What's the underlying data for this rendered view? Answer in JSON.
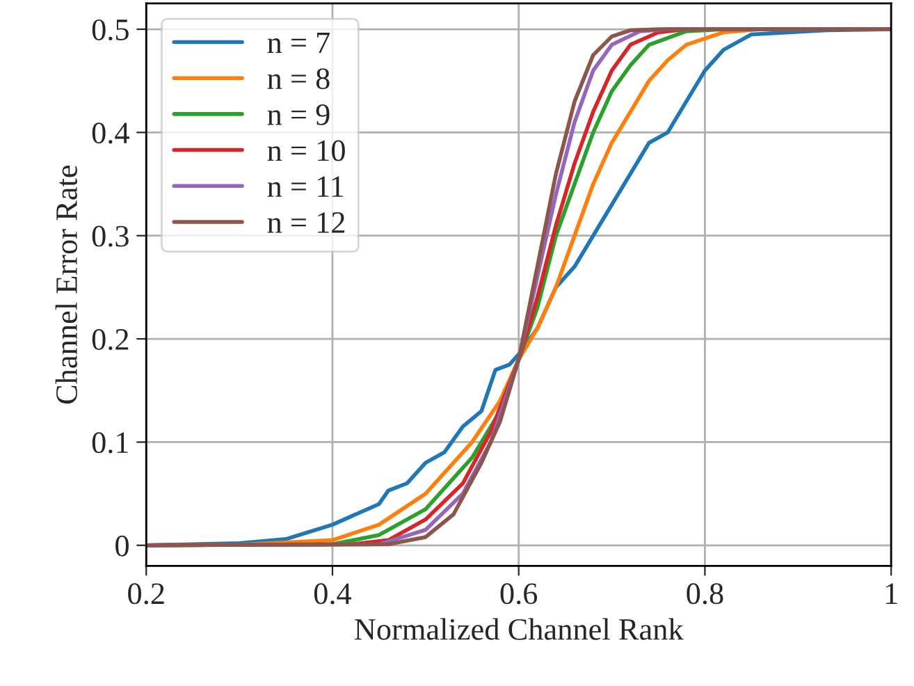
{
  "chart_data": {
    "type": "line",
    "xlabel": "Normalized Channel Rank",
    "ylabel": "Channel Error Rate",
    "xlim": [
      0.2,
      1.0
    ],
    "ylim": [
      -0.02,
      0.525
    ],
    "xticks": [
      0.2,
      0.4,
      0.6,
      0.8,
      1
    ],
    "yticks": [
      0,
      0.1,
      0.2,
      0.3,
      0.4,
      0.5
    ],
    "grid": true,
    "legend": "top left",
    "line_style": "solid",
    "marker": "none",
    "series": [
      {
        "name": "n = 7",
        "color": "#1f77b4",
        "x": [
          0.2,
          0.3,
          0.35,
          0.4,
          0.45,
          0.46,
          0.48,
          0.5,
          0.52,
          0.54,
          0.56,
          0.575,
          0.59,
          0.6,
          0.62,
          0.64,
          0.66,
          0.68,
          0.7,
          0.72,
          0.74,
          0.76,
          0.78,
          0.8,
          0.82,
          0.85,
          0.93,
          1.0
        ],
        "values": [
          0,
          0.002,
          0.006,
          0.02,
          0.04,
          0.053,
          0.06,
          0.08,
          0.09,
          0.115,
          0.13,
          0.17,
          0.175,
          0.185,
          0.21,
          0.25,
          0.27,
          0.3,
          0.33,
          0.36,
          0.39,
          0.4,
          0.43,
          0.46,
          0.48,
          0.495,
          0.499,
          0.5
        ]
      },
      {
        "name": "n = 8",
        "color": "#ff7f0e",
        "x": [
          0.2,
          0.3,
          0.4,
          0.45,
          0.5,
          0.55,
          0.58,
          0.6,
          0.62,
          0.64,
          0.66,
          0.68,
          0.7,
          0.72,
          0.74,
          0.76,
          0.78,
          0.82,
          0.86,
          1.0
        ],
        "values": [
          0,
          0.0005,
          0.005,
          0.02,
          0.05,
          0.1,
          0.14,
          0.18,
          0.21,
          0.25,
          0.3,
          0.35,
          0.39,
          0.42,
          0.45,
          0.47,
          0.485,
          0.497,
          0.5,
          0.5
        ]
      },
      {
        "name": "n = 9",
        "color": "#2ca02c",
        "x": [
          0.2,
          0.4,
          0.45,
          0.5,
          0.55,
          0.58,
          0.6,
          0.62,
          0.64,
          0.66,
          0.68,
          0.7,
          0.72,
          0.74,
          0.78,
          0.82,
          1.0
        ],
        "values": [
          0,
          0.001,
          0.01,
          0.035,
          0.085,
          0.13,
          0.18,
          0.23,
          0.3,
          0.35,
          0.4,
          0.44,
          0.465,
          0.485,
          0.498,
          0.5,
          0.5
        ]
      },
      {
        "name": "n = 10",
        "color": "#d62728",
        "x": [
          0.2,
          0.42,
          0.46,
          0.5,
          0.54,
          0.57,
          0.6,
          0.62,
          0.64,
          0.66,
          0.68,
          0.7,
          0.72,
          0.75,
          0.78,
          1.0
        ],
        "values": [
          0,
          0.001,
          0.005,
          0.025,
          0.06,
          0.11,
          0.18,
          0.24,
          0.31,
          0.37,
          0.42,
          0.46,
          0.485,
          0.497,
          0.5,
          0.5
        ]
      },
      {
        "name": "n = 11",
        "color": "#9467bd",
        "x": [
          0.2,
          0.45,
          0.5,
          0.54,
          0.57,
          0.6,
          0.62,
          0.64,
          0.66,
          0.68,
          0.7,
          0.73,
          0.76,
          1.0
        ],
        "values": [
          0,
          0.001,
          0.015,
          0.05,
          0.1,
          0.18,
          0.26,
          0.34,
          0.41,
          0.46,
          0.485,
          0.498,
          0.5,
          0.5
        ]
      },
      {
        "name": "n = 12",
        "color": "#8c564b",
        "x": [
          0.2,
          0.46,
          0.5,
          0.53,
          0.56,
          0.58,
          0.6,
          0.62,
          0.64,
          0.66,
          0.68,
          0.7,
          0.72,
          0.75,
          1.0
        ],
        "values": [
          0,
          0.001,
          0.008,
          0.03,
          0.08,
          0.12,
          0.18,
          0.27,
          0.36,
          0.43,
          0.475,
          0.493,
          0.499,
          0.5,
          0.5
        ]
      }
    ]
  }
}
